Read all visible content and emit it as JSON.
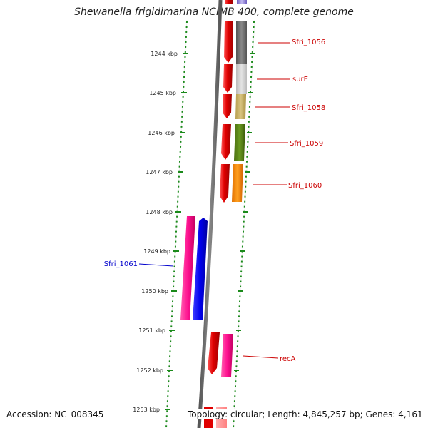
{
  "title": "Shewanella frigidimarina NCIMB 400, complete genome",
  "accession": "Accession: NC_008345",
  "topology": "Topology: circular; Length: 4,845,257 bp; Genes: 4,161",
  "ticks": [
    "1244 kbp",
    "1245 kbp",
    "1246 kbp",
    "1247 kbp",
    "1248 kbp",
    "1249 kbp",
    "1250 kbp",
    "1251 kbp",
    "1252 kbp",
    "1253 kbp"
  ],
  "genes": {
    "sfri_1056": "Sfri_1056",
    "sure": "surE",
    "sfri_1058": "Sfri_1058",
    "sfri_1059": "Sfri_1059",
    "sfri_1060": "Sfri_1060",
    "sfri_1061": "Sfri_1061",
    "reca": "recA"
  },
  "colors": {
    "forward_gene": "#e8000a",
    "reverse_gene": "#ff1493",
    "sfri_1061": "#0000ee",
    "label_red": "#cc0000",
    "label_blue": "#0000cc",
    "backbone": "#777777"
  }
}
